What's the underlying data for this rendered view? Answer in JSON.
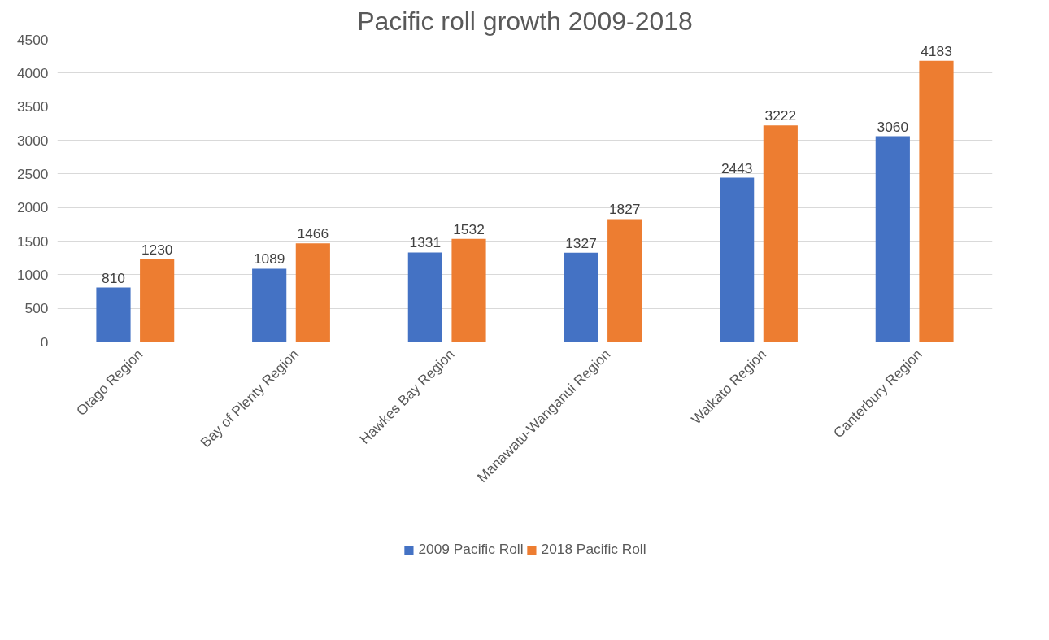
{
  "chart_data": {
    "type": "bar",
    "title": "Pacific roll growth 2009-2018",
    "categories": [
      "Otago Region",
      "Bay of Plenty Region",
      "Hawkes Bay Region",
      "Manawatu-Wanganui Region",
      "Waikato Region",
      "Canterbury Region"
    ],
    "series": [
      {
        "name": "2009 Pacific Roll",
        "color": "#4472c4",
        "values": [
          810,
          1089,
          1331,
          1327,
          2443,
          3060
        ]
      },
      {
        "name": "2018 Pacific Roll",
        "color": "#ed7d31",
        "values": [
          1230,
          1466,
          1532,
          1827,
          3222,
          4183
        ]
      }
    ],
    "ylim": [
      0,
      4500
    ],
    "yticks": [
      0,
      500,
      1000,
      1500,
      2000,
      2500,
      3000,
      3500,
      4000,
      4500
    ],
    "grid": "y",
    "legend": "bottom",
    "data_labels": true
  }
}
